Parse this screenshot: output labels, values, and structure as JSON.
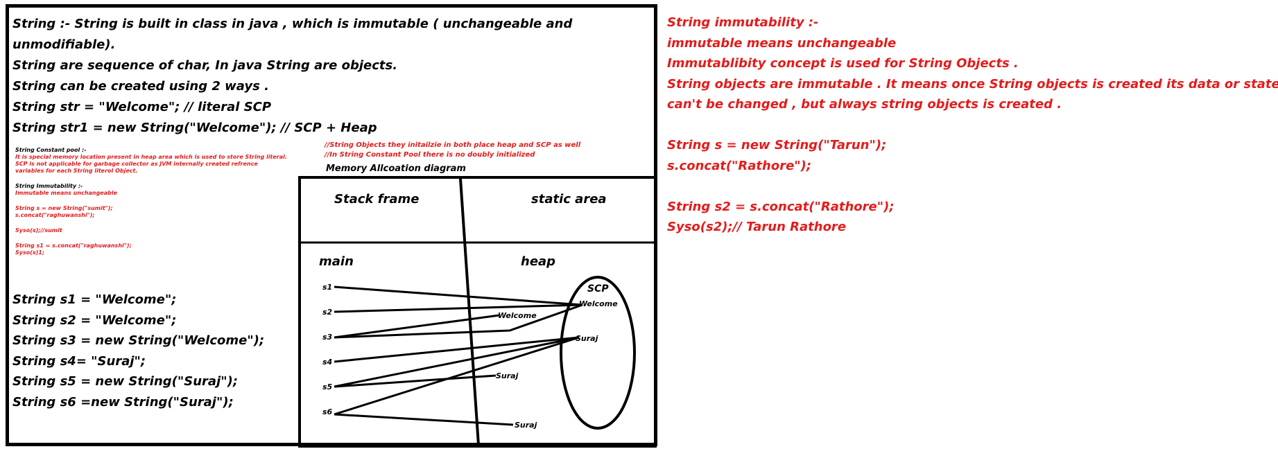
{
  "main_notes": [
    "String :- String is built in class in java , which is immutable ( unchangeable and",
    "unmodifiable).",
    "String are sequence  of char, In java String are objects.",
    "String can be created using 2 ways .",
    "String str = \"Welcome\";  // literal  SCP",
    "String str1 = new String(\"Welcome\"); // SCP + Heap"
  ],
  "small_notes": {
    "scp_title": "String Constant pool :-",
    "scp_lines": [
      "It is special memory location present in heap area which is used to store String literal.",
      "SCP is not applicable for garbage collector as JVM internally created refrence",
      "variables for each String literol Object."
    ],
    "imm_title": "String Immutability :-",
    "imm_line": "Immutable means unchangeable",
    "code_a": [
      "String s = new String(\"sumit\");",
      "s.concat(\"raghuwanshi\");"
    ],
    "code_b": "Syso(s);//sumit",
    "code_c": [
      "String s1 = s.concat(\"raghuwanshi\");",
      "Syso(s)1;"
    ]
  },
  "red_comment": [
    "//String Objects they initailzie in both place heap and SCP as well",
    "//In String Constant Pool there is no doubly initialized"
  ],
  "diagram": {
    "title": "Memory Allcoation diagram",
    "stack_frame": "Stack frame",
    "static_area": "static area",
    "main": "main",
    "heap": "heap",
    "scp": "SCP",
    "refs": [
      "s1",
      "s2",
      "s3",
      "s4",
      "s5",
      "s6"
    ],
    "scp_objects": [
      "Welcome",
      "Suraj"
    ],
    "heap_objects": [
      "Welcome",
      "Suraj",
      "Suraj"
    ]
  },
  "declarations": [
    "String s1 = \"Welcome\";",
    "String s2 = \"Welcome\";",
    "String s3 = new String(\"Welcome\");",
    "String s4= \"Suraj\";",
    "String s5 = new String(\"Suraj\");",
    "String s6 =new String(\"Suraj\");"
  ],
  "right_notes": [
    "String immutability :-",
    "immutable means unchangeable",
    "Immutablibity concept is used for String Objects .",
    "String objects are immutable . It means once String objects is created its data or state",
    "can't be changed , but always string objects is created .",
    "",
    "String s = new String(\"Tarun\");",
    "s.concat(\"Rathore\");",
    "",
    "String s2 = s.concat(\"Rathore\");",
    "Syso(s2);// Tarun Rathore"
  ],
  "colors": {
    "red": "#e41b1b",
    "black": "#000000"
  }
}
